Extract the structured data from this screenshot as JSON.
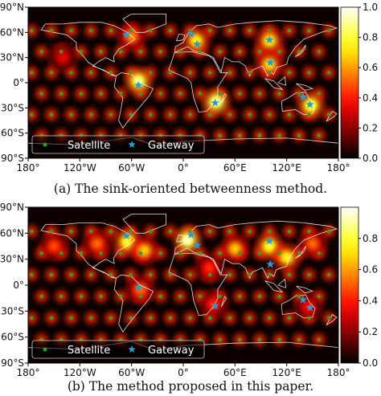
{
  "chart_data": [
    {
      "type": "heatmap",
      "caption": "(a) The sink-oriented betweenness method.",
      "x_ticks": [
        "180°",
        "120°W",
        "60°W",
        "0°",
        "60°E",
        "120°E",
        "180°"
      ],
      "y_ticks": [
        "90°N",
        "60°N",
        "30°N",
        "0°",
        "30°S",
        "60°S",
        "90°S"
      ],
      "xlim": [
        -180,
        180
      ],
      "ylim": [
        -90,
        90
      ],
      "colorbar": {
        "range": [
          0,
          1.0
        ],
        "ticks": [
          "0.0",
          "0.2",
          "0.4",
          "0.6",
          "0.8",
          "1.0"
        ],
        "colormap": "hot"
      },
      "legend": {
        "position": "bottom-left",
        "entries": [
          {
            "label": "Satellite",
            "marker": "circle",
            "color": "#2ca02c"
          },
          {
            "label": "Gateway",
            "marker": "star",
            "color": "#1f9fd8"
          }
        ]
      },
      "gateways": [
        [
          -66,
          57
        ],
        [
          -52,
          -3
        ],
        [
          9,
          58
        ],
        [
          16,
          46
        ],
        [
          37,
          -24
        ],
        [
          100,
          51
        ],
        [
          101,
          24
        ],
        [
          139,
          -17
        ],
        [
          147,
          -26
        ]
      ],
      "hotspots": [
        {
          "lon": -52,
          "lat": 2,
          "value": 0.95
        },
        {
          "lon": 38,
          "lat": -23,
          "value": 0.98
        },
        {
          "lon": 148,
          "lat": -27,
          "value": 0.9
        },
        {
          "lon": 15,
          "lat": 50,
          "value": 0.8
        },
        {
          "lon": 100,
          "lat": 50,
          "value": 0.8
        },
        {
          "lon": 100,
          "lat": 22,
          "value": 0.75
        },
        {
          "lon": -60,
          "lat": 55,
          "value": 0.6
        },
        {
          "lon": -140,
          "lat": 30,
          "value": 0.35
        }
      ],
      "grid_spacing": {
        "lon": 23,
        "lat": 25
      }
    },
    {
      "type": "heatmap",
      "caption": "(b) The method proposed in this paper.",
      "x_ticks": [
        "180°",
        "120°W",
        "60°W",
        "0°",
        "60°E",
        "120°E",
        "180°"
      ],
      "y_ticks": [
        "90°N",
        "60°N",
        "30°N",
        "0°",
        "30°S",
        "60°S",
        "90°S"
      ],
      "xlim": [
        -180,
        180
      ],
      "ylim": [
        -90,
        90
      ],
      "colorbar": {
        "range": [
          0,
          1.0
        ],
        "ticks": [
          "0.0",
          "0.2",
          "0.4",
          "0.6",
          "0.8"
        ],
        "colormap": "hot"
      },
      "legend": {
        "position": "bottom-left",
        "entries": [
          {
            "label": "Satellite",
            "marker": "circle",
            "color": "#2ca02c"
          },
          {
            "label": "Gateway",
            "marker": "star",
            "color": "#1f9fd8"
          }
        ]
      },
      "gateways": [
        [
          -66,
          57
        ],
        [
          -52,
          -3
        ],
        [
          9,
          58
        ],
        [
          16,
          46
        ],
        [
          37,
          -24
        ],
        [
          100,
          51
        ],
        [
          101,
          24
        ],
        [
          139,
          -17
        ],
        [
          147,
          -26
        ]
      ],
      "hotspots": [
        {
          "lon": 5,
          "lat": 52,
          "value": 1.0
        },
        {
          "lon": -65,
          "lat": 50,
          "value": 0.85
        },
        {
          "lon": -45,
          "lat": 40,
          "value": 0.7
        },
        {
          "lon": 60,
          "lat": 42,
          "value": 0.7
        },
        {
          "lon": 100,
          "lat": 45,
          "value": 0.85
        },
        {
          "lon": 120,
          "lat": 32,
          "value": 0.8
        },
        {
          "lon": -100,
          "lat": 48,
          "value": 0.55
        },
        {
          "lon": 150,
          "lat": 48,
          "value": 0.55
        },
        {
          "lon": -150,
          "lat": 45,
          "value": 0.5
        },
        {
          "lon": -50,
          "lat": -5,
          "value": 0.55
        },
        {
          "lon": 35,
          "lat": -22,
          "value": 0.45
        },
        {
          "lon": 145,
          "lat": -25,
          "value": 0.4
        },
        {
          "lon": 30,
          "lat": 20,
          "value": 0.45
        }
      ],
      "grid_spacing": {
        "lon": 23,
        "lat": 25
      }
    }
  ]
}
